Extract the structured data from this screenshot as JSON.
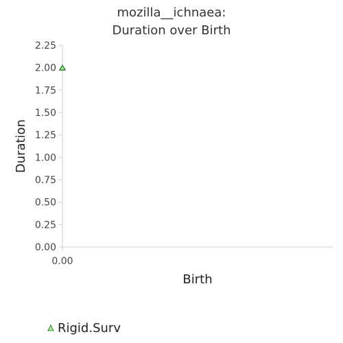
{
  "chart_data": {
    "type": "scatter",
    "title_line1": "mozilla__ichnaea:",
    "title_line2": "Duration over Birth",
    "xlabel": "Birth",
    "ylabel": "Duration",
    "xlim": [
      0,
      1
    ],
    "ylim": [
      0,
      2.25
    ],
    "x_ticks": [
      "0.00"
    ],
    "y_ticks": [
      "0.00",
      "0.25",
      "0.50",
      "0.75",
      "1.00",
      "1.25",
      "1.50",
      "1.75",
      "2.00",
      "2.25"
    ],
    "series": [
      {
        "name": "Rigid.Surv",
        "marker": "triangle",
        "color": "#2e8b2e",
        "fill": "#b9e3a8",
        "points": [
          {
            "x": 0,
            "y": 2.0
          }
        ]
      }
    ],
    "legend": {
      "position": "bottom-left"
    },
    "grid": false
  }
}
